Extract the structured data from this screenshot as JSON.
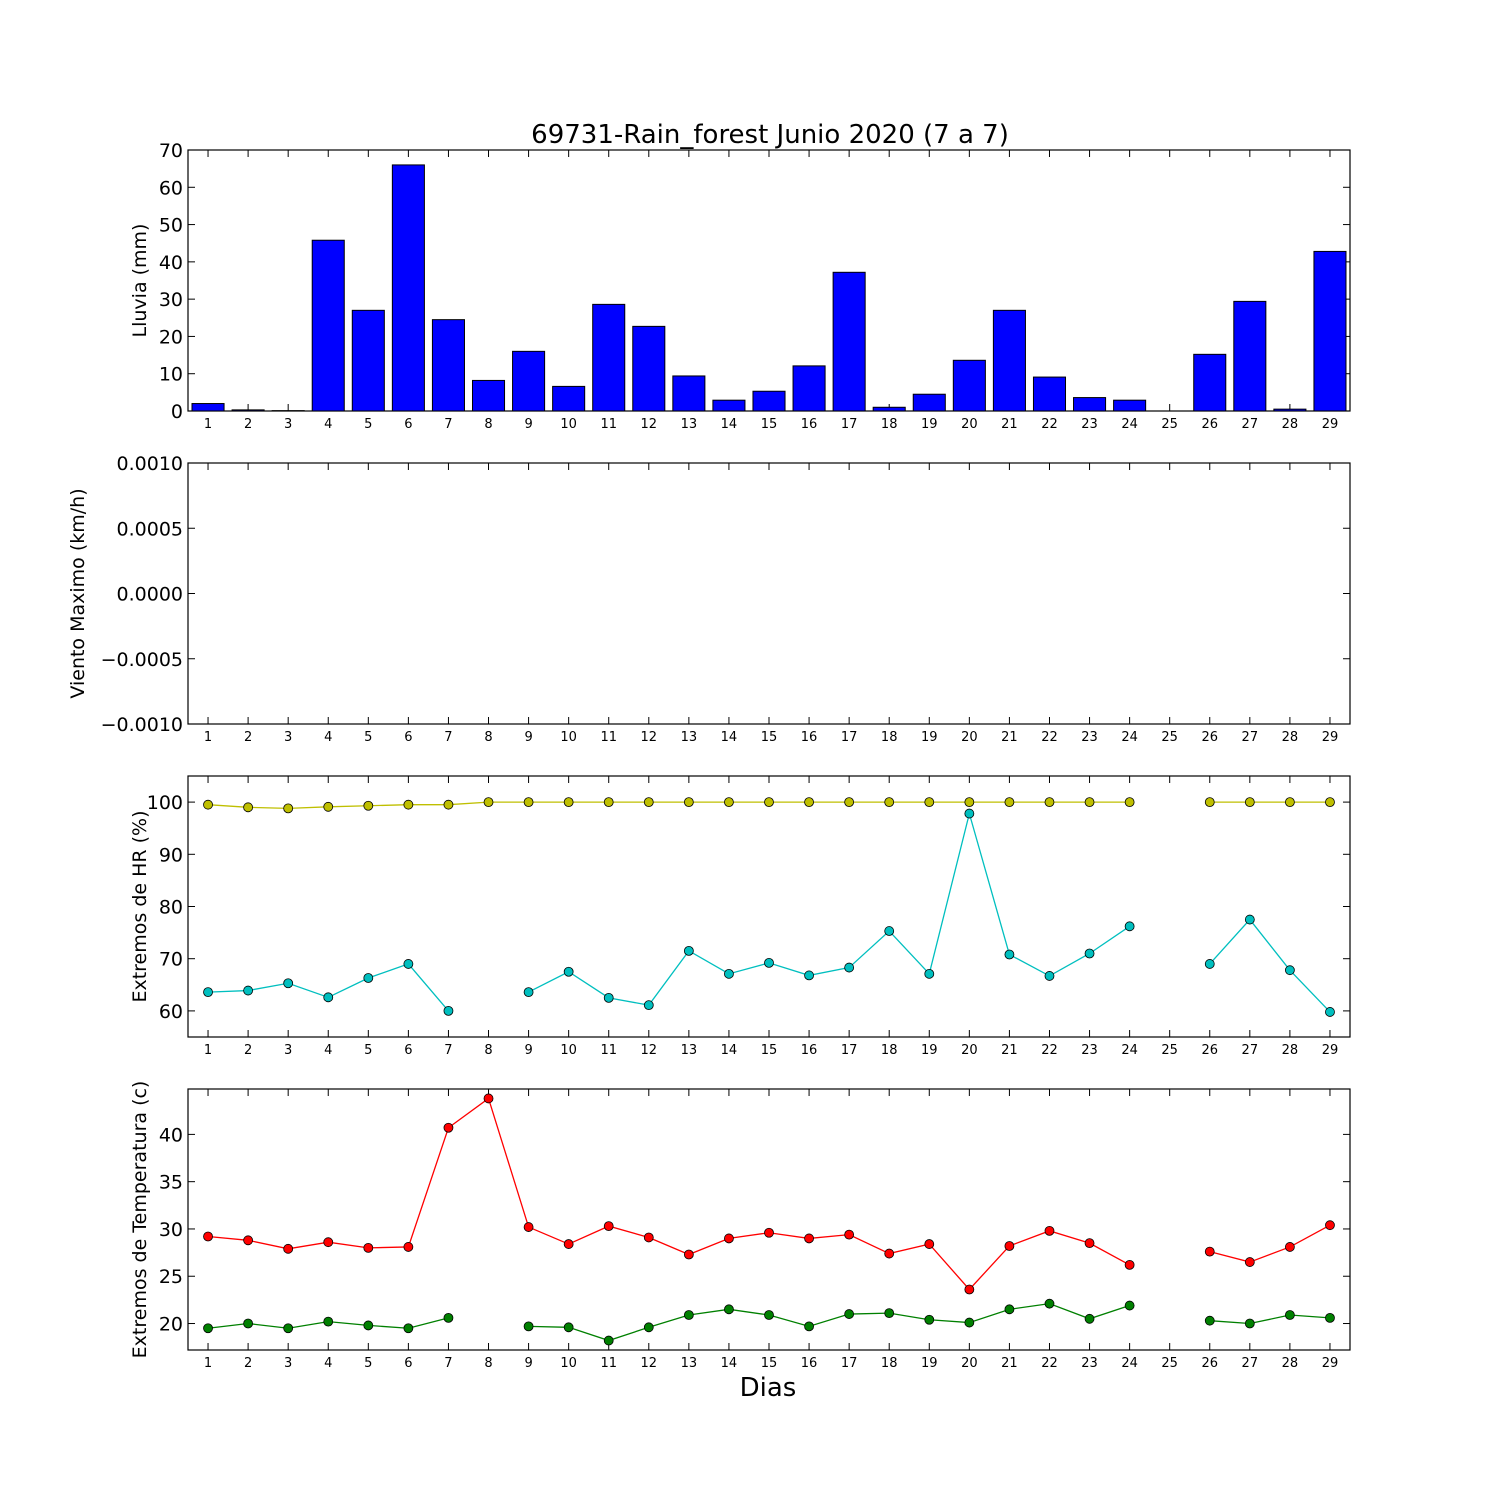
{
  "title": "69731-Rain_forest Junio 2020  (7 a 7)",
  "xlabel": "Dias",
  "days": [
    1,
    2,
    3,
    4,
    5,
    6,
    7,
    8,
    9,
    10,
    11,
    12,
    13,
    14,
    15,
    16,
    17,
    18,
    19,
    20,
    21,
    22,
    23,
    24,
    25,
    26,
    27,
    28,
    29
  ],
  "colors": {
    "rain": "#0000ff",
    "hr_max": "#bfbf00",
    "hr_min": "#00bfbf",
    "temp_max": "#ff0000",
    "temp_min": "#008000"
  },
  "chart_data": [
    {
      "type": "bar",
      "title": "69731-Rain_forest Junio 2020  (7 a 7)",
      "ylabel": "Lluvia (mm)",
      "ylim": [
        0,
        70
      ],
      "yticks": [
        "0",
        "10",
        "20",
        "30",
        "40",
        "50",
        "60",
        "70"
      ],
      "categories": [
        1,
        2,
        3,
        4,
        5,
        6,
        7,
        8,
        9,
        10,
        11,
        12,
        13,
        14,
        15,
        16,
        17,
        18,
        19,
        20,
        21,
        22,
        23,
        24,
        25,
        26,
        27,
        28,
        29
      ],
      "values": [
        2.0,
        0.3,
        0.1,
        45.8,
        27.0,
        66.0,
        24.5,
        8.2,
        16.0,
        6.6,
        28.6,
        22.7,
        9.4,
        2.9,
        5.3,
        12.1,
        37.2,
        1.0,
        4.5,
        13.6,
        27.0,
        9.1,
        3.6,
        2.9,
        0.0,
        15.2,
        29.4,
        0.5,
        42.8
      ]
    },
    {
      "type": "line",
      "ylabel": "Viento Maximo (km/h)",
      "ylim": [
        -0.001,
        0.001
      ],
      "yticks": [
        "−0.0010",
        "−0.0005",
        "0.0000",
        "0.0005",
        "0.0010"
      ],
      "series": []
    },
    {
      "type": "line",
      "ylabel": "Extremos de HR (%)",
      "ylim": [
        55,
        105
      ],
      "yticks": [
        "60",
        "70",
        "80",
        "90",
        "100"
      ],
      "series": [
        {
          "values": [
            99.5,
            99.0,
            98.8,
            99.1,
            99.3,
            99.5,
            99.5,
            100,
            100,
            100,
            100,
            100,
            100,
            100,
            100,
            100,
            100,
            100,
            100,
            100,
            100,
            100,
            100,
            100,
            null,
            100,
            100,
            100,
            100
          ]
        },
        {
          "values": [
            63.6,
            63.9,
            65.3,
            62.6,
            66.3,
            69.0,
            60.0,
            null,
            63.6,
            67.5,
            62.5,
            61.1,
            71.5,
            67.1,
            69.2,
            66.8,
            68.3,
            75.3,
            67.1,
            97.8,
            70.8,
            66.7,
            71.0,
            76.2,
            null,
            69.0,
            77.5,
            67.8,
            59.8
          ]
        }
      ]
    },
    {
      "type": "line",
      "ylabel": "Extremos de Temperatura (c)",
      "ylim": [
        17.2,
        44.8
      ],
      "yticks": [
        "20",
        "25",
        "30",
        "35",
        "40"
      ],
      "series": [
        {
          "values": [
            29.2,
            28.8,
            27.9,
            28.6,
            28.0,
            28.1,
            40.7,
            43.8,
            30.2,
            28.4,
            30.3,
            29.1,
            27.3,
            29.0,
            29.6,
            29.0,
            29.4,
            27.4,
            28.4,
            23.6,
            28.2,
            29.8,
            28.5,
            26.2,
            null,
            27.6,
            26.5,
            28.1,
            30.4
          ]
        },
        {
          "values": [
            19.5,
            20.0,
            19.5,
            20.2,
            19.8,
            19.5,
            20.6,
            null,
            19.7,
            19.6,
            18.2,
            19.6,
            20.9,
            21.5,
            20.9,
            19.7,
            21.0,
            21.1,
            20.4,
            20.1,
            21.5,
            22.1,
            20.5,
            21.9,
            null,
            20.3,
            20.0,
            20.9,
            20.6
          ]
        }
      ]
    }
  ]
}
